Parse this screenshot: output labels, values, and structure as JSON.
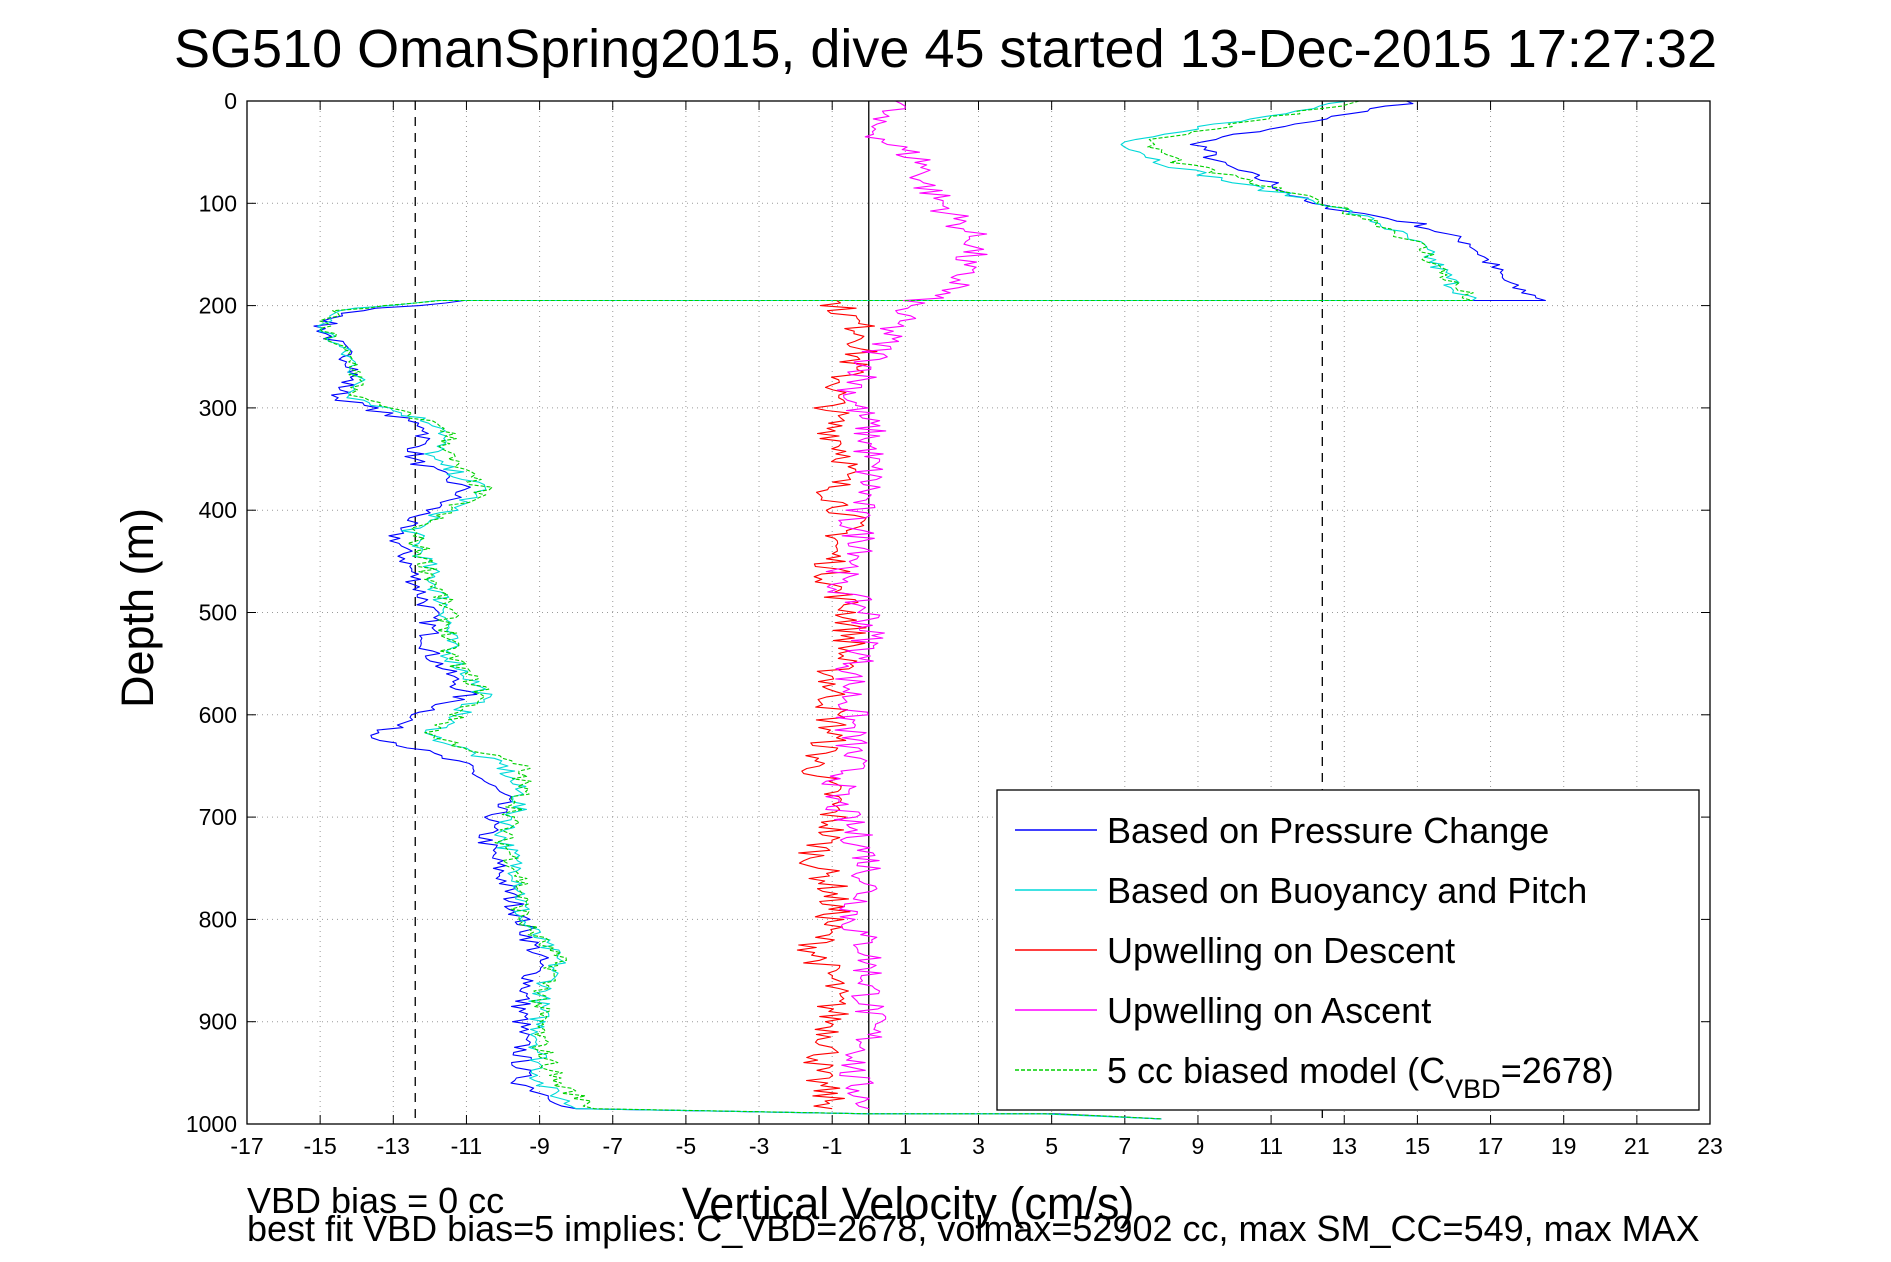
{
  "chart_data": {
    "type": "line",
    "title": "SG510 OmanSpring2015, dive 45 started 13-Dec-2015 17:27:32",
    "xlabel": "Vertical Velocity (cm/s)",
    "ylabel": "Depth (m)",
    "xlim": [
      -17,
      23
    ],
    "ylim": [
      0,
      1000
    ],
    "y_reversed": true,
    "grid": true,
    "x_ticks": [
      "-17",
      "-15",
      "-13",
      "-11",
      "-9",
      "-7",
      "-5",
      "-3",
      "-1",
      "1",
      "3",
      "5",
      "7",
      "9",
      "11",
      "13",
      "15",
      "17",
      "19",
      "21",
      "23"
    ],
    "y_ticks": [
      "0",
      "100",
      "200",
      "300",
      "400",
      "500",
      "600",
      "700",
      "800",
      "900",
      "1000"
    ],
    "reference_lines": [
      {
        "x": -12.4,
        "style": "dashed"
      },
      {
        "x": 12.4,
        "style": "dashed"
      },
      {
        "x": 0,
        "style": "solid"
      }
    ],
    "legend_position": "bottom-right",
    "series": [
      {
        "name": "Based on Pressure Change",
        "color": "#0000ff",
        "depth": [
          0,
          20,
          40,
          60,
          80,
          100,
          120,
          140,
          160,
          180,
          195,
          195,
          205,
          220,
          240,
          260,
          290,
          320,
          350,
          380,
          420,
          460,
          500,
          540,
          580,
          620,
          650,
          680,
          720,
          760,
          800,
          840,
          880,
          920,
          960,
          985,
          990,
          990,
          995
        ],
        "values": [
          15,
          12,
          9,
          9.5,
          11,
          12,
          15,
          16.5,
          17,
          17.5,
          18.5,
          -11,
          -14,
          -15,
          -14.5,
          -14,
          -14.5,
          -12,
          -12.5,
          -11,
          -13,
          -12.5,
          -12,
          -12,
          -11,
          -13.5,
          -11,
          -10,
          -10.5,
          -10,
          -9.5,
          -9,
          -9.5,
          -9.5,
          -9.5,
          -8,
          0,
          5,
          8
        ]
      },
      {
        "name": "Based on Buoyancy and Pitch",
        "color": "#00d8d8",
        "depth": [
          0,
          20,
          40,
          60,
          80,
          100,
          120,
          140,
          160,
          180,
          195,
          195,
          205,
          220,
          240,
          260,
          290,
          320,
          350,
          380,
          420,
          460,
          500,
          540,
          580,
          620,
          650,
          680,
          720,
          760,
          800,
          840,
          880,
          920,
          960,
          985,
          990,
          990,
          995
        ],
        "values": [
          13,
          10,
          7,
          8,
          10,
          12.5,
          14,
          15,
          15.5,
          16,
          16.5,
          -12,
          -14.5,
          -15,
          -14.5,
          -14,
          -14,
          -11.5,
          -12,
          -10.5,
          -12.5,
          -12,
          -11.5,
          -11.5,
          -10.5,
          -12,
          -10,
          -9.5,
          -10,
          -9.5,
          -9.5,
          -8.5,
          -9,
          -9,
          -9,
          -8,
          0,
          5,
          8
        ]
      },
      {
        "name": "Upwelling on Descent",
        "color": "#ff0000",
        "depth": [
          195,
          230,
          260,
          290,
          320,
          350,
          380,
          410,
          440,
          470,
          500,
          530,
          560,
          590,
          620,
          650,
          680,
          710,
          740,
          770,
          800,
          830,
          860,
          890,
          920,
          950,
          985
        ],
        "values": [
          -1,
          0,
          -0.5,
          -1,
          -1,
          -0.5,
          -1,
          -0.5,
          -1,
          -1,
          -0.5,
          -0.5,
          -1,
          -1,
          -1,
          -1.5,
          -1,
          -1,
          -1.5,
          -1,
          -1,
          -1.5,
          -1,
          -1,
          -1,
          -1.5,
          -1
        ]
      },
      {
        "name": "Upwelling on Ascent",
        "color": "#ff00ff",
        "depth": [
          0,
          20,
          40,
          60,
          80,
          100,
          120,
          140,
          160,
          180,
          200,
          230,
          260,
          290,
          320,
          350,
          380,
          410,
          440,
          470,
          500,
          530,
          560,
          590,
          620,
          650,
          680,
          710,
          740,
          770,
          800,
          830,
          860,
          890,
          920,
          950,
          985
        ],
        "values": [
          1,
          0,
          0.5,
          1.5,
          1.5,
          2,
          2.5,
          3,
          2.5,
          2.5,
          1,
          0.5,
          0,
          -0.5,
          0,
          0,
          0,
          -0.5,
          0,
          -1,
          0,
          0,
          -0.5,
          -0.5,
          -0.5,
          -0.5,
          -1,
          -0.5,
          0,
          0,
          -0.5,
          0,
          0,
          0,
          0,
          -0.5,
          0
        ]
      },
      {
        "name": "5 cc biased model (C_VBD=2678)",
        "color": "#00d000",
        "depth": [
          0,
          20,
          40,
          60,
          80,
          100,
          120,
          140,
          160,
          180,
          195,
          195,
          205,
          220,
          240,
          260,
          290,
          320,
          350,
          380,
          420,
          460,
          500,
          540,
          580,
          620,
          650,
          680,
          720,
          760,
          800,
          840,
          880,
          920,
          960,
          985,
          990,
          990,
          995
        ],
        "values": [
          13.5,
          10.5,
          7.5,
          8.5,
          10.5,
          12.5,
          14,
          15,
          15.5,
          16,
          16.5,
          -12,
          -14.5,
          -15,
          -14.5,
          -14,
          -14,
          -11.5,
          -11.5,
          -10.5,
          -12.5,
          -12,
          -11.5,
          -11.5,
          -10.5,
          -12,
          -9.5,
          -9.5,
          -10,
          -9.5,
          -9.5,
          -8.5,
          -9,
          -9,
          -8.5,
          -7.5,
          0,
          5,
          8
        ]
      }
    ],
    "legend": {
      "entries": [
        {
          "label": "Based on Pressure Change",
          "color": "#0000ff",
          "style": "solid"
        },
        {
          "label": "Based on Buoyancy and Pitch",
          "color": "#00d8d8",
          "style": "solid"
        },
        {
          "label": "Upwelling on Descent",
          "color": "#ff0000",
          "style": "solid"
        },
        {
          "label": "Upwelling on Ascent",
          "color": "#ff00ff",
          "style": "solid"
        },
        {
          "label": "5 cc biased model (C",
          "sub": "VBD",
          "tail": "=2678)",
          "color": "#00d000",
          "style": "dashed"
        }
      ]
    },
    "annotations": {
      "vbd_bias": "VBD bias = 0 cc",
      "fit_summary": "best fit VBD bias=5 implies: C_VBD=2678, volmax=52902 cc, max SM_CC=549, max MAX"
    }
  }
}
